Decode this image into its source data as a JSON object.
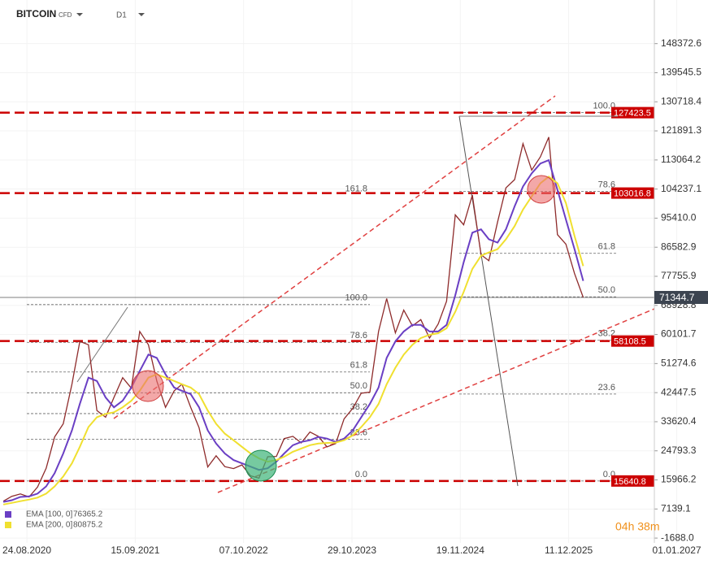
{
  "chart_data": {
    "type": "line",
    "title": "BITCOIN",
    "subtitle": "CFD",
    "timeframe": "D1",
    "countdown": "04h 38m",
    "x": [
      "01.06.2020",
      "01.07.2020",
      "01.08.2020",
      "01.09.2020",
      "01.10.2020",
      "01.11.2020",
      "01.12.2020",
      "01.01.2021",
      "01.02.2021",
      "01.03.2021",
      "01.04.2021",
      "01.05.2021",
      "01.06.2021",
      "01.07.2021",
      "01.08.2021",
      "01.09.2021",
      "01.10.2021",
      "01.11.2021",
      "01.12.2021",
      "01.01.2022",
      "01.02.2022",
      "01.03.2022",
      "01.04.2022",
      "01.05.2022",
      "01.06.2022",
      "01.07.2022",
      "01.08.2022",
      "01.09.2022",
      "01.10.2022",
      "01.11.2022",
      "01.12.2022",
      "01.01.2023",
      "01.02.2023",
      "01.03.2023",
      "01.04.2023",
      "01.05.2023",
      "01.06.2023",
      "01.07.2023",
      "01.08.2023",
      "01.09.2023",
      "01.10.2023",
      "01.11.2023",
      "01.12.2023",
      "01.01.2024",
      "01.02.2024",
      "01.03.2024",
      "01.04.2024",
      "01.05.2024",
      "01.06.2024",
      "01.07.2024",
      "01.08.2024",
      "01.09.2024",
      "01.10.2024",
      "01.11.2024",
      "01.12.2024",
      "01.01.2025",
      "01.02.2025",
      "01.03.2025",
      "01.04.2025",
      "01.05.2025",
      "01.06.2025",
      "01.07.2025",
      "01.08.2025",
      "01.09.2025",
      "01.10.2025",
      "01.11.2025",
      "01.12.2025",
      "01.01.2026",
      "01.02.2026"
    ],
    "xlim": [
      "20.05.2020",
      "13.10.2026"
    ],
    "xticks": [
      "24.08.2020",
      "15.09.2021",
      "07.10.2022",
      "29.10.2023",
      "19.11.2024",
      "11.12.2025",
      "01.01.2027"
    ],
    "ylim": [
      -6102,
      161613
    ],
    "yticks": [
      148372.6,
      139545.5,
      130718.4,
      121891.3,
      113064.2,
      104237.1,
      {
        "value": 95410,
        "label": "95410.0"
      },
      86582.9,
      77755.9,
      68928.8,
      60101.7,
      51274.6,
      42447.5,
      33620.4,
      24793.3,
      15966.2,
      7139.1,
      {
        "value": -1688,
        "label": "-1688.0"
      }
    ],
    "grid": true,
    "series": [
      {
        "color": "#8e2b2b",
        "values": [
          9500,
          11000,
          11700,
          10800,
          13800,
          19500,
          29000,
          33000,
          45000,
          58000,
          57000,
          37000,
          35000,
          41000,
          47000,
          43800,
          61000,
          57000,
          46000,
          38000,
          43000,
          45000,
          38000,
          31800,
          19900,
          23300,
          20000,
          19400,
          20500,
          17200,
          16500,
          23000,
          23100,
          28500,
          29200,
          27200,
          30500,
          29200,
          26000,
          27000,
          34500,
          37700,
          42300,
          42600,
          61000,
          71000,
          60600,
          67500,
          62700,
          64600,
          59000,
          63300,
          70200,
          96400,
          93400,
          102400,
          84300,
          82500,
          94200,
          104600,
          107100,
          118000,
          110000,
          114000,
          120000,
          90400,
          87500,
          78600,
          71344.7
        ]
      },
      {
        "name": "EMA [100, 0]",
        "last_value": 76365.2,
        "color": "#6a3fc4",
        "values": [
          9300,
          9800,
          10800,
          11000,
          11800,
          14000,
          18000,
          24000,
          31000,
          39000,
          47000,
          46000,
          41000,
          38000,
          40000,
          44000,
          49000,
          54000,
          53000,
          48000,
          44000,
          43000,
          42000,
          38000,
          31000,
          27000,
          24000,
          22000,
          21000,
          20000,
          19000,
          19500,
          21500,
          24000,
          26500,
          27500,
          28000,
          29000,
          28500,
          27500,
          28500,
          31000,
          35000,
          39000,
          44000,
          53000,
          58000,
          61000,
          63000,
          63000,
          61000,
          61000,
          63000,
          72000,
          82000,
          91000,
          92000,
          89000,
          88000,
          92000,
          99000,
          105000,
          109000,
          112000,
          113000,
          104000,
          95000,
          86000,
          76365.2
        ]
      },
      {
        "name": "EMA [200, 0]",
        "last_value": 80875.2,
        "color": "#f0e030",
        "values": [
          8500,
          9000,
          9500,
          10000,
          10600,
          11800,
          14000,
          17000,
          21000,
          26000,
          32000,
          35000,
          36000,
          36500,
          38000,
          40000,
          43000,
          47000,
          48000,
          47000,
          46000,
          45000,
          44000,
          42000,
          37000,
          33000,
          30000,
          28000,
          26000,
          24000,
          22500,
          21500,
          22000,
          23000,
          24500,
          25500,
          26500,
          27000,
          27200,
          27300,
          28000,
          29500,
          32000,
          35000,
          39000,
          45000,
          50000,
          54000,
          57000,
          59000,
          60000,
          60500,
          62000,
          67000,
          73000,
          80000,
          84000,
          85000,
          86000,
          89000,
          93000,
          98000,
          102000,
          106000,
          108000,
          106000,
          100000,
          90000,
          80875.2
        ]
      }
    ],
    "levels": {
      "color": "#cc0000",
      "values": [
        127423.5,
        103016.8,
        58108.5,
        15640.8
      ]
    },
    "last_price": 71344.7,
    "fibonacci": [
      {
        "low": 15640.8,
        "high": 69170,
        "levels": [
          {
            "value": 0,
            "label": "0.0"
          },
          23.6,
          38.2,
          {
            "value": 50,
            "label": "50.0"
          },
          61.8,
          78.6,
          {
            "value": 100,
            "label": "100.0"
          },
          161.8
        ]
      },
      {
        "low": 15640.8,
        "high": 127423.5,
        "levels": [
          {
            "value": 0,
            "label": "0.0"
          },
          23.6,
          38.2,
          {
            "value": 50,
            "label": "50.0"
          },
          61.8,
          78.6,
          {
            "value": 100,
            "label": "100.0"
          }
        ]
      }
    ]
  }
}
